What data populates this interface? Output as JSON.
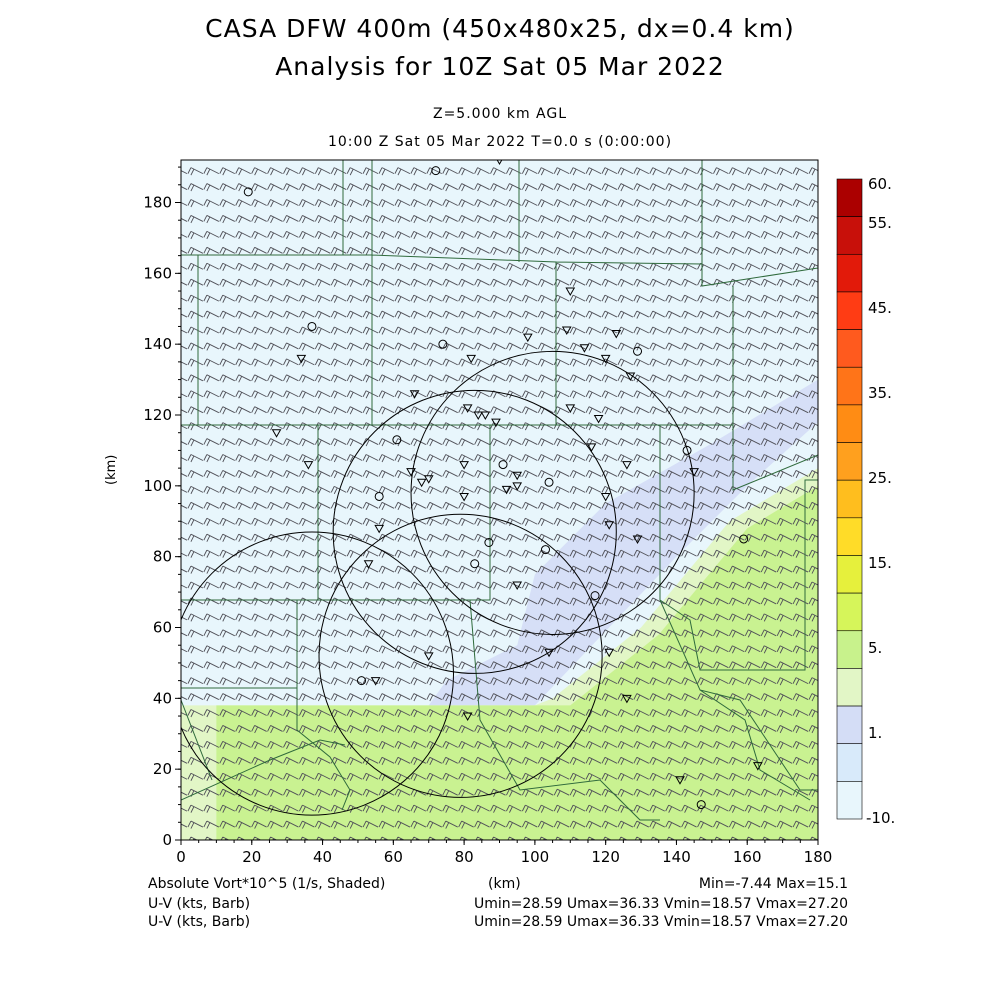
{
  "header": {
    "title_line1": "CASA DFW 400m (450x480x25, dx=0.4 km)",
    "title_line2": "Analysis for 10Z Sat 05 Mar 2022",
    "level": "Z=5.000 km AGL",
    "time": "10:00 Z Sat 05 Mar 2022    T=0.0 s (0:00:00)"
  },
  "footer": {
    "field_label": "Absolute Vort*10^5 (1/s, Shaded)",
    "x_unit": "(km)",
    "minmax": "Min=-7.44 Max=15.1",
    "wind1_label": "U-V (kts, Barb)",
    "wind1_stats": "Umin=28.59 Umax=36.33 Vmin=18.57 Vmax=27.20",
    "wind2_label": "U-V (kts, Barb)",
    "wind2_stats": "Umin=28.59 Umax=36.33 Vmin=18.57 Vmax=27.20"
  },
  "colors": {
    "background_field": "#e8f6fc",
    "band_light": "#d8eafa",
    "band_lavender": "#d4ddf6",
    "band_green_pale": "#e2f6c6",
    "band_green": "#c9f291",
    "barb": "#505058",
    "county_lines": "#2f6a3c",
    "range_rings": "#000000"
  },
  "chart_data": {
    "type": "heatmap",
    "xlabel": "(km)",
    "ylabel": "(km)",
    "xlim": [
      0,
      180
    ],
    "ylim": [
      0,
      192
    ],
    "xticks": [
      "0",
      "20",
      "40",
      "60",
      "80",
      "100",
      "120",
      "140",
      "160",
      "180"
    ],
    "yticks": [
      "0",
      "20",
      "40",
      "60",
      "80",
      "100",
      "120",
      "140",
      "160",
      "180"
    ],
    "colorbar": {
      "labels": [
        "60.",
        "55.",
        "45.",
        "35.",
        "25.",
        "15.",
        "5.",
        "1.",
        "-10."
      ],
      "colors": [
        "#ab0000",
        "#c8100a",
        "#e21a0a",
        "#ff3c14",
        "#ff5a1e",
        "#ff7418",
        "#ff8c14",
        "#ffa01e",
        "#ffbe1e",
        "#ffdc28",
        "#e6f03c",
        "#d6f55a",
        "#c8f28c",
        "#e2f6c6",
        "#d4ddf6",
        "#d8eafa",
        "#e8f6fc"
      ]
    },
    "field_regions": [
      {
        "level": "1.",
        "polygon_km": [
          [
            96,
            70
          ],
          [
            155,
            115
          ],
          [
            180,
            125
          ],
          [
            180,
            60
          ],
          [
            120,
            60
          ],
          [
            80,
            55
          ],
          [
            60,
            40
          ],
          [
            150,
            40
          ],
          [
            140,
            70
          ]
        ]
      },
      {
        "level": "5.",
        "polygon_km": [
          [
            0,
            38
          ],
          [
            100,
            38
          ],
          [
            180,
            110
          ],
          [
            180,
            0
          ],
          [
            0,
            0
          ]
        ]
      }
    ],
    "range_rings": [
      {
        "cx": 79,
        "cy": 52,
        "r": 40
      },
      {
        "cx": 105,
        "cy": 98,
        "r": 40
      },
      {
        "cx": 83,
        "cy": 87,
        "r": 40
      },
      {
        "cx": 37,
        "cy": 47,
        "r": 40
      }
    ],
    "wind_barbs": {
      "u_range_kts": [
        28.59,
        36.33
      ],
      "v_range_kts": [
        18.57,
        27.2
      ],
      "grid_spacing_km": 4.5
    },
    "stations_circle": [
      [
        19,
        183
      ],
      [
        72,
        189
      ],
      [
        37,
        145
      ],
      [
        74,
        140
      ],
      [
        129,
        138
      ],
      [
        61,
        113
      ],
      [
        91,
        106
      ],
      [
        56,
        97
      ],
      [
        104,
        101
      ],
      [
        87,
        84
      ],
      [
        83,
        78
      ],
      [
        103,
        82
      ],
      [
        117,
        69
      ],
      [
        159,
        85
      ],
      [
        143,
        110
      ],
      [
        51,
        45
      ],
      [
        147,
        10
      ]
    ],
    "stations_triangle": [
      [
        90,
        192
      ],
      [
        34,
        136
      ],
      [
        27,
        115
      ],
      [
        36,
        106
      ],
      [
        66,
        126
      ],
      [
        65,
        104
      ],
      [
        68,
        101
      ],
      [
        70,
        102
      ],
      [
        80,
        106
      ],
      [
        80,
        97
      ],
      [
        81,
        122
      ],
      [
        84,
        120
      ],
      [
        86,
        120
      ],
      [
        89,
        118
      ],
      [
        82,
        136
      ],
      [
        98,
        142
      ],
      [
        110,
        155
      ],
      [
        109,
        144
      ],
      [
        114,
        139
      ],
      [
        123,
        143
      ],
      [
        120,
        136
      ],
      [
        127,
        131
      ],
      [
        110,
        122
      ],
      [
        118,
        119
      ],
      [
        116,
        111
      ],
      [
        126,
        106
      ],
      [
        95,
        103
      ],
      [
        95,
        100
      ],
      [
        92,
        99
      ],
      [
        120,
        97
      ],
      [
        121,
        89
      ],
      [
        129,
        85
      ],
      [
        56,
        88
      ],
      [
        53,
        78
      ],
      [
        95,
        72
      ],
      [
        70,
        52
      ],
      [
        104,
        53
      ],
      [
        121,
        53
      ],
      [
        126,
        40
      ],
      [
        81,
        35
      ],
      [
        55,
        45
      ],
      [
        141,
        17
      ],
      [
        163,
        21
      ],
      [
        145,
        104
      ]
    ],
    "min": -7.44,
    "max": 15.1
  }
}
